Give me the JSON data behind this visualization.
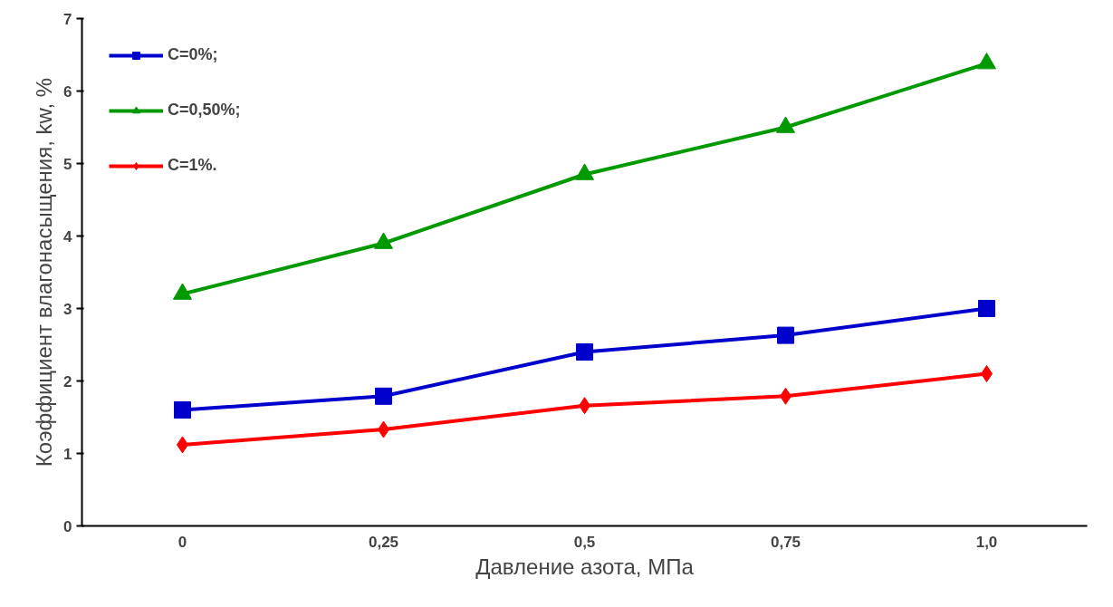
{
  "chart_data": {
    "type": "line",
    "xlabel": "Давление азота, МПа",
    "ylabel": "Коэффициент влагонасыщения, kw, %",
    "categories": [
      "0",
      "0,25",
      "0,5",
      "0,75",
      "1,0"
    ],
    "ylim": [
      0,
      7
    ],
    "yticks": [
      0,
      1,
      2,
      3,
      4,
      5,
      6,
      7
    ],
    "grid": false,
    "legend": "top left",
    "line_style": "solid",
    "series": [
      {
        "name": "C=0%;",
        "color": "#0000cc",
        "marker": "square",
        "values": [
          1.6,
          1.79,
          2.4,
          2.63,
          3.0
        ]
      },
      {
        "name": "C=0,50%;",
        "color": "#009900",
        "marker": "triangle",
        "values": [
          3.2,
          3.9,
          4.85,
          5.5,
          6.38
        ]
      },
      {
        "name": "C=1%.",
        "color": "#ff0000",
        "marker": "diamond",
        "values": [
          1.12,
          1.33,
          1.66,
          1.79,
          2.1
        ]
      }
    ]
  }
}
